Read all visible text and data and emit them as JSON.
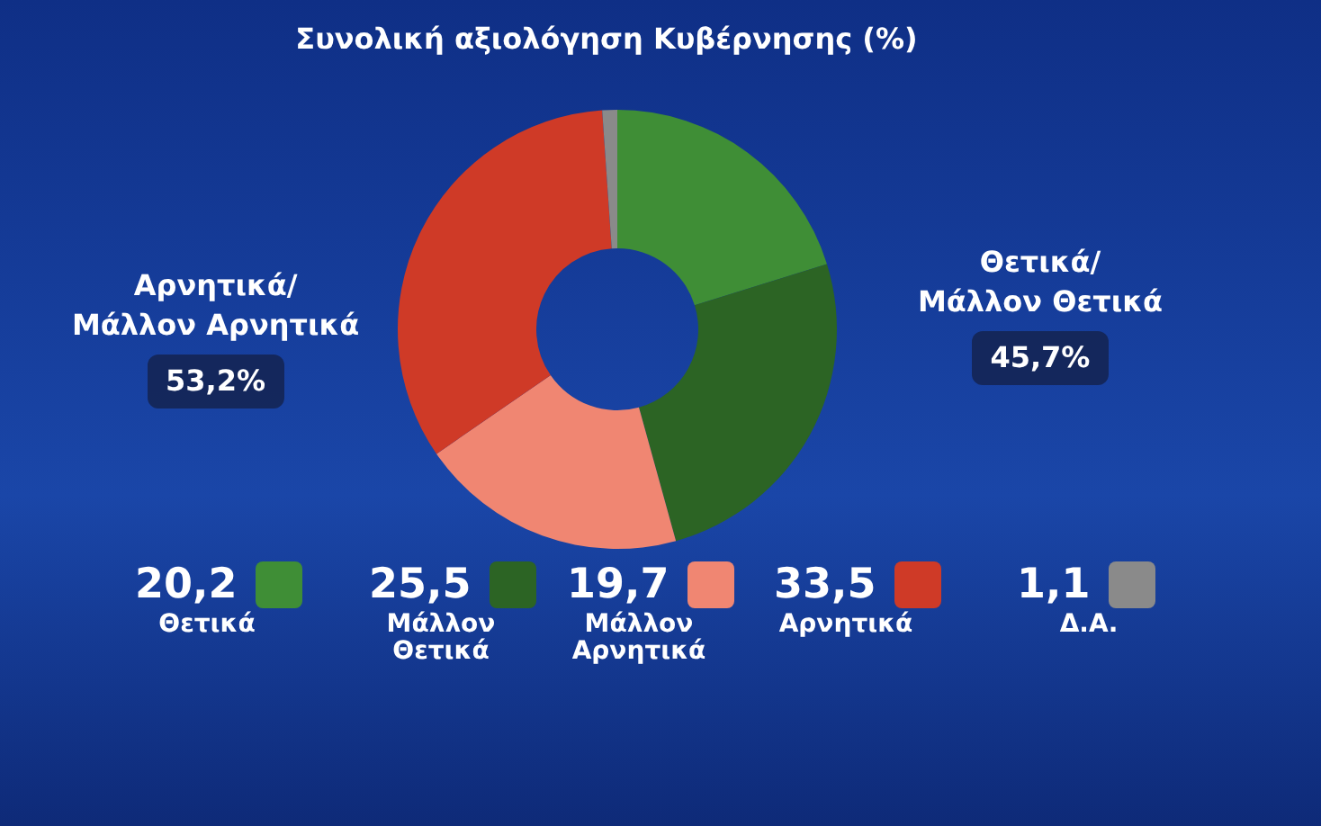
{
  "chart_data": {
    "type": "donut",
    "title": "Συνολική αξιολόγηση Κυβέρνησης (%)",
    "categories": [
      "Θετικά",
      "Μάλλον Θετικά",
      "Μάλλον Αρνητικά",
      "Αρνητικά",
      "Δ.Α."
    ],
    "values": [
      20.2,
      25.5,
      19.7,
      33.5,
      1.1
    ],
    "colors": [
      "#3f8e36",
      "#2c6424",
      "#f08672",
      "#cf3a27",
      "#8a8a8a"
    ],
    "value_labels": [
      "20,2",
      "25,5",
      "19,7",
      "33,5",
      "1,1"
    ],
    "legend": "bottom",
    "annotations": [
      "Αρνητικά/ Μάλλον Αρνητικά 53,2%",
      "Θετικά/ Μάλλον Θετικά 45,7%"
    ]
  }
}
